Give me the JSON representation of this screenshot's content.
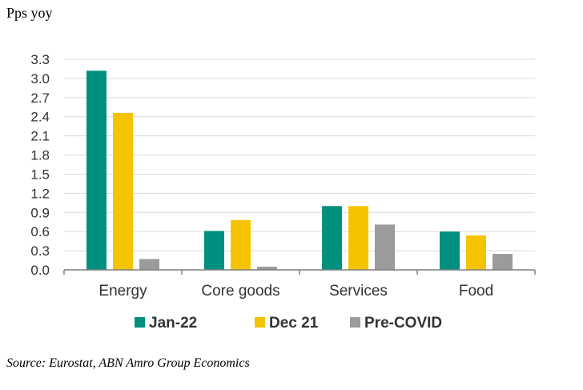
{
  "chart_data": {
    "type": "bar",
    "ylabel": "Pps yoy",
    "categories": [
      "Energy",
      "Core goods",
      "Services",
      "Food"
    ],
    "series": [
      {
        "name": "Jan-22",
        "color": "#00907F",
        "values": [
          3.12,
          0.61,
          1.0,
          0.6
        ]
      },
      {
        "name": "Dec 21",
        "color": "#F5C400",
        "values": [
          2.46,
          0.78,
          1.0,
          0.54
        ]
      },
      {
        "name": "Pre-COVID",
        "color": "#9B9B9B",
        "values": [
          0.17,
          0.05,
          0.71,
          0.25
        ]
      }
    ],
    "yticks": [
      "0.0",
      "0.3",
      "0.6",
      "0.9",
      "1.2",
      "1.5",
      "1.8",
      "2.1",
      "2.4",
      "2.7",
      "3.0",
      "3.3"
    ],
    "ylim": [
      0,
      3.3
    ],
    "grid": true,
    "legend": "bottom",
    "source": "Source: Eurostat, ABN Amro Group Economics"
  }
}
